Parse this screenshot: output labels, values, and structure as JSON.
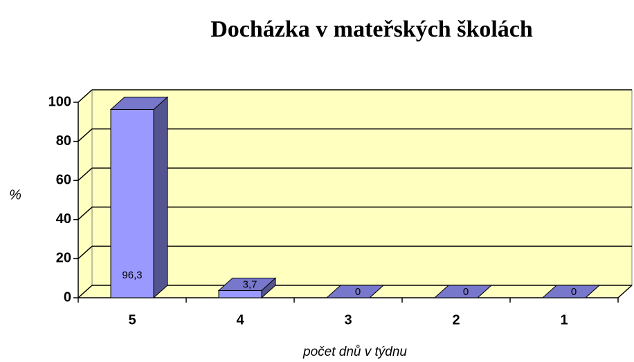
{
  "chart_data": {
    "type": "bar3d",
    "title": "Docházka v mateřských školách",
    "y_label": "%",
    "x_label": "počet dnů v týdnu",
    "categories": [
      "5",
      "4",
      "3",
      "2",
      "1"
    ],
    "values": [
      96.3,
      3.7,
      0,
      0,
      0
    ],
    "value_labels": [
      "96,3",
      "3,7",
      "0",
      "0",
      "0"
    ],
    "color": "#9999ff",
    "ylim": [
      0,
      100
    ],
    "yticks": [
      0,
      20,
      40,
      60,
      80,
      100
    ],
    "grid": true
  }
}
